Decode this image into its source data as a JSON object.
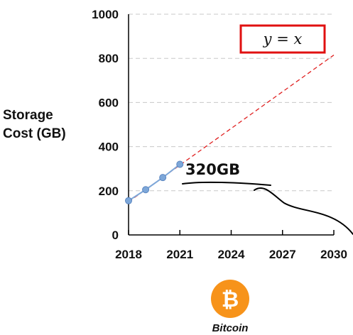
{
  "chart_data": {
    "type": "line",
    "ylabel_lines": [
      "Storage",
      "Cost (GB)"
    ],
    "xlim": [
      2018,
      2030
    ],
    "ylim": [
      0,
      1000
    ],
    "x_ticks": [
      "2018",
      "2021",
      "2024",
      "2027",
      "2030"
    ],
    "y_ticks": [
      "0",
      "200",
      "400",
      "600",
      "800",
      "1000"
    ],
    "grid": true,
    "series": [
      {
        "x": [
          2018,
          2019,
          2020,
          2021
        ],
        "y": [
          155,
          205,
          260,
          320
        ],
        "color": "#7da7d9"
      }
    ],
    "trend": {
      "x": [
        2018,
        2030
      ],
      "y": [
        150,
        815
      ],
      "color": "#e02020",
      "dashed": true
    },
    "equation": "y = x",
    "annotation": "320GB"
  },
  "logo": {
    "label": "Bitcoin",
    "symbol": "₿",
    "color": "#f7931a"
  }
}
